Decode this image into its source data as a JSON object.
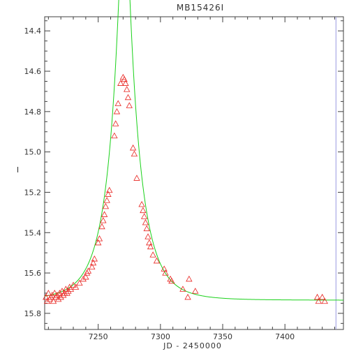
{
  "chart_data": {
    "type": "scatter",
    "title": "MB15426I",
    "xlabel": "JD - 2450000",
    "ylabel": "I",
    "xlim": [
      7207,
      7447
    ],
    "ylim": [
      15.88,
      14.33
    ],
    "y_inverted": true,
    "xticks": [
      7250,
      7300,
      7350,
      7400
    ],
    "xtick_labels": [
      "7250",
      "7300",
      "7350",
      "7400"
    ],
    "yticks": [
      14.4,
      14.6,
      14.8,
      15.0,
      15.2,
      15.4,
      15.6,
      15.8
    ],
    "ytick_labels": [
      "14.4",
      "14.6",
      "14.8",
      "15.0",
      "15.2",
      "15.4",
      "15.6",
      "15.8"
    ],
    "grid": false,
    "vertical_marker_x": 7441,
    "colors": {
      "points": "#e8231f",
      "model": "#19d119",
      "axis": "#404040",
      "vertical_marker": "#9a9ae0"
    },
    "series": [
      {
        "type": "scatter",
        "marker": "triangle",
        "points": [
          [
            7208,
            15.72
          ],
          [
            7209,
            15.74
          ],
          [
            7210,
            15.7
          ],
          [
            7211,
            15.73
          ],
          [
            7212,
            15.72
          ],
          [
            7213,
            15.71
          ],
          [
            7214,
            15.74
          ],
          [
            7215,
            15.7
          ],
          [
            7216,
            15.72
          ],
          [
            7217,
            15.71
          ],
          [
            7218,
            15.73
          ],
          [
            7219,
            15.7
          ],
          [
            7220,
            15.72
          ],
          [
            7221,
            15.69
          ],
          [
            7222,
            15.71
          ],
          [
            7223,
            15.7
          ],
          [
            7224,
            15.68
          ],
          [
            7225,
            15.7
          ],
          [
            7226,
            15.69
          ],
          [
            7227,
            15.67
          ],
          [
            7228,
            15.68
          ],
          [
            7230,
            15.66
          ],
          [
            7232,
            15.67
          ],
          [
            7235,
            15.65
          ],
          [
            7238,
            15.63
          ],
          [
            7240,
            15.62
          ],
          [
            7241,
            15.6
          ],
          [
            7242,
            15.59
          ],
          [
            7245,
            15.57
          ],
          [
            7246,
            15.55
          ],
          [
            7247,
            15.53
          ],
          [
            7250,
            15.45
          ],
          [
            7251,
            15.43
          ],
          [
            7253,
            15.37
          ],
          [
            7254,
            15.34
          ],
          [
            7255,
            15.31
          ],
          [
            7256,
            15.27
          ],
          [
            7257,
            15.24
          ],
          [
            7258,
            15.21
          ],
          [
            7259,
            15.19
          ],
          [
            7263,
            14.92
          ],
          [
            7264,
            14.86
          ],
          [
            7265,
            14.8
          ],
          [
            7266,
            14.76
          ],
          [
            7268,
            14.66
          ],
          [
            7270,
            14.63
          ],
          [
            7271,
            14.64
          ],
          [
            7272,
            14.66
          ],
          [
            7273,
            14.69
          ],
          [
            7274,
            14.73
          ],
          [
            7275,
            14.77
          ],
          [
            7278,
            14.98
          ],
          [
            7279,
            15.01
          ],
          [
            7281,
            15.13
          ],
          [
            7285,
            15.26
          ],
          [
            7286,
            15.29
          ],
          [
            7287,
            15.32
          ],
          [
            7288,
            15.35
          ],
          [
            7289,
            15.38
          ],
          [
            7290,
            15.42
          ],
          [
            7291,
            15.45
          ],
          [
            7292,
            15.47
          ],
          [
            7294,
            15.51
          ],
          [
            7297,
            15.54
          ],
          [
            7303,
            15.58
          ],
          [
            7304,
            15.6
          ],
          [
            7308,
            15.63
          ],
          [
            7309,
            15.64
          ],
          [
            7318,
            15.68
          ],
          [
            7322,
            15.72
          ],
          [
            7323,
            15.63
          ],
          [
            7328,
            15.69
          ],
          [
            7426,
            15.72
          ],
          [
            7427,
            15.74
          ],
          [
            7430,
            15.72
          ],
          [
            7432,
            15.74
          ]
        ]
      },
      {
        "type": "line",
        "model": {
          "t0": 7271,
          "base_mag": 15.735,
          "u0": 0.161,
          "tE": 22
        }
      }
    ]
  }
}
